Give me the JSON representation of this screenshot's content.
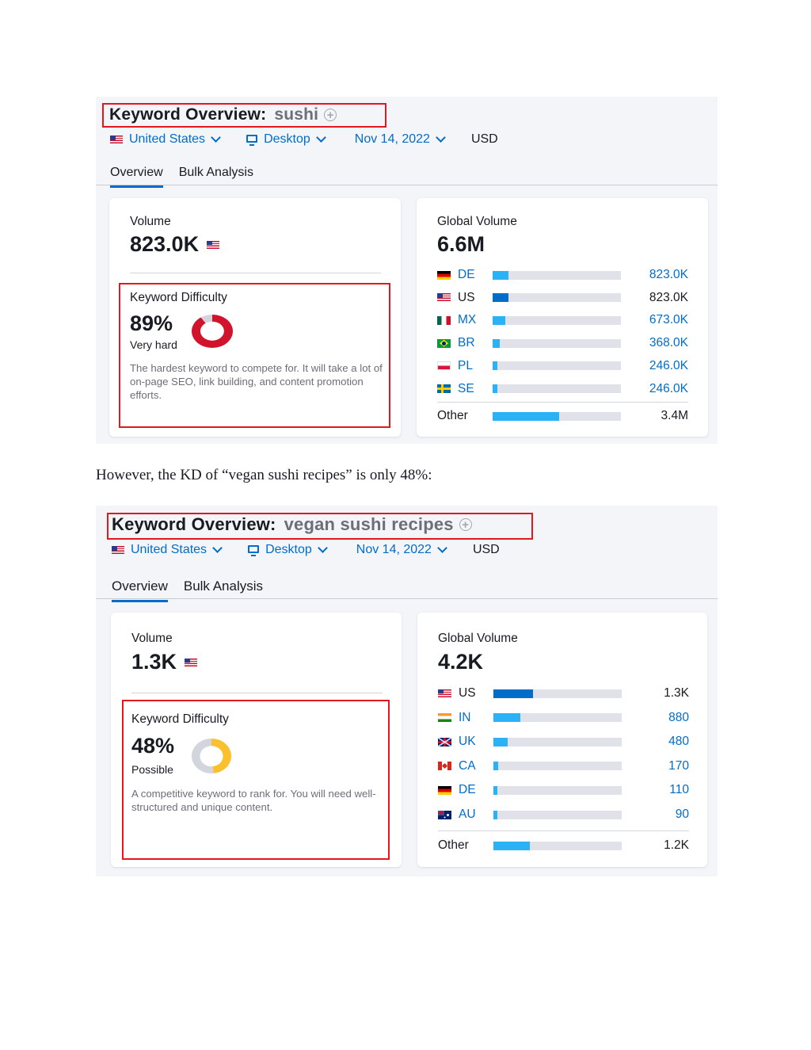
{
  "caption": "However, the KD of “vegan sushi recipes” is only 48%:",
  "panels": [
    {
      "title_prefix": "Keyword Overview:",
      "keyword": "sushi",
      "country": "United States",
      "device": "Desktop",
      "date": "Nov 14, 2022",
      "currency": "USD",
      "tabs": [
        "Overview",
        "Bulk Analysis"
      ],
      "volume_label": "Volume",
      "volume_value": "823.0K",
      "kd_label": "Keyword Difficulty",
      "kd_value": "89%",
      "kd_percent": 89,
      "kd_color": "#d1142c",
      "kd_word": "Very hard",
      "kd_desc": "The hardest keyword to compete for. It will take a lot of on-page SEO, link building, and content promotion efforts.",
      "global_label": "Global Volume",
      "global_value": "6.6M",
      "countries": [
        {
          "code": "DE",
          "flag": "de-flag-icon",
          "value": "823.0K",
          "share": 0.125,
          "link": true,
          "dark": false
        },
        {
          "code": "US",
          "flag": "us-flag-icon",
          "value": "823.0K",
          "share": 0.125,
          "link": false,
          "dark": true
        },
        {
          "code": "MX",
          "flag": "mx-flag-icon",
          "value": "673.0K",
          "share": 0.1,
          "link": true,
          "dark": false
        },
        {
          "code": "BR",
          "flag": "br-flag-icon",
          "value": "368.0K",
          "share": 0.056,
          "link": true,
          "dark": false
        },
        {
          "code": "PL",
          "flag": "pl-flag-icon",
          "value": "246.0K",
          "share": 0.037,
          "link": true,
          "dark": false
        },
        {
          "code": "SE",
          "flag": "se-flag-icon",
          "value": "246.0K",
          "share": 0.037,
          "link": true,
          "dark": false
        }
      ],
      "other_label": "Other",
      "other_value": "3.4M",
      "other_share": 0.52
    },
    {
      "title_prefix": "Keyword Overview:",
      "keyword": "vegan sushi recipes",
      "country": "United States",
      "device": "Desktop",
      "date": "Nov 14, 2022",
      "currency": "USD",
      "tabs": [
        "Overview",
        "Bulk Analysis"
      ],
      "volume_label": "Volume",
      "volume_value": "1.3K",
      "kd_label": "Keyword Difficulty",
      "kd_value": "48%",
      "kd_percent": 48,
      "kd_color": "#fbc02d",
      "kd_word": "Possible",
      "kd_desc": "A competitive keyword to rank for. You will need well-structured and unique content.",
      "global_label": "Global Volume",
      "global_value": "4.2K",
      "countries": [
        {
          "code": "US",
          "flag": "us-flag-icon",
          "value": "1.3K",
          "share": 0.31,
          "link": false,
          "dark": true
        },
        {
          "code": "IN",
          "flag": "in-flag-icon",
          "value": "880",
          "share": 0.21,
          "link": true,
          "dark": false
        },
        {
          "code": "UK",
          "flag": "uk-flag-icon",
          "value": "480",
          "share": 0.114,
          "link": true,
          "dark": false
        },
        {
          "code": "CA",
          "flag": "ca-flag-icon",
          "value": "170",
          "share": 0.04,
          "link": true,
          "dark": false
        },
        {
          "code": "DE",
          "flag": "de-flag-icon",
          "value": "110",
          "share": 0.026,
          "link": true,
          "dark": false
        },
        {
          "code": "AU",
          "flag": "au-flag-icon",
          "value": "90",
          "share": 0.021,
          "link": true,
          "dark": false
        }
      ],
      "other_label": "Other",
      "other_value": "1.2K",
      "other_share": 0.286
    }
  ]
}
